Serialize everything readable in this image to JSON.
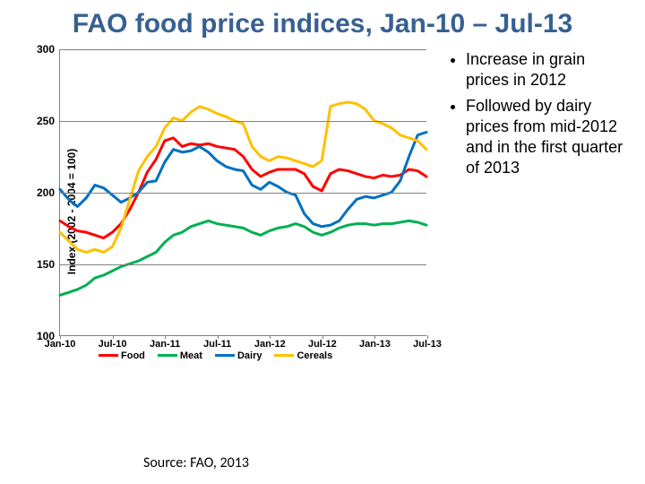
{
  "title": "FAO food price indices, Jan-10 – Jul-13",
  "ylabel": "Index (2002 - 2004 = 100)",
  "source": "Source: FAO, 2013",
  "bullets": [
    "Increase in grain prices in 2012",
    "Followed by dairy prices from mid-2012 and in the first quarter of 2013"
  ],
  "chart": {
    "type": "line",
    "ylim": [
      100,
      300
    ],
    "ytick_step": 50,
    "yticks": [
      100,
      150,
      200,
      250,
      300
    ],
    "xlabels": [
      "Jan-10",
      "Jul-10",
      "Jan-11",
      "Jul-11",
      "Jan-12",
      "Jul-12",
      "Jan-13",
      "Jul-13"
    ],
    "n_points": 43,
    "grid_color": "#808080",
    "background_color": "#ffffff",
    "line_width": 3,
    "axis_fontsize": 12,
    "title_fontsize": 30,
    "title_color": "#376092",
    "series": [
      {
        "name": "Food",
        "color": "#ff0000",
        "values": [
          180,
          176,
          173,
          172,
          170,
          168,
          172,
          178,
          188,
          200,
          214,
          223,
          236,
          238,
          232,
          234,
          233,
          234,
          232,
          231,
          230,
          225,
          216,
          211,
          214,
          216,
          216,
          216,
          213,
          204,
          201,
          213,
          216,
          215,
          213,
          211,
          210,
          212,
          211,
          212,
          216,
          215,
          211
        ]
      },
      {
        "name": "Meat",
        "color": "#00b050",
        "values": [
          128,
          130,
          132,
          135,
          140,
          142,
          145,
          148,
          150,
          152,
          155,
          158,
          165,
          170,
          172,
          176,
          178,
          180,
          178,
          177,
          176,
          175,
          172,
          170,
          173,
          175,
          176,
          178,
          176,
          172,
          170,
          172,
          175,
          177,
          178,
          178,
          177,
          178,
          178,
          179,
          180,
          179,
          177
        ]
      },
      {
        "name": "Dairy",
        "color": "#0070c0",
        "values": [
          202,
          195,
          190,
          196,
          205,
          203,
          198,
          193,
          196,
          200,
          207,
          208,
          221,
          230,
          228,
          229,
          232,
          228,
          222,
          218,
          216,
          215,
          205,
          202,
          207,
          204,
          200,
          198,
          185,
          178,
          176,
          177,
          180,
          188,
          195,
          197,
          196,
          198,
          200,
          208,
          225,
          240,
          242
        ]
      },
      {
        "name": "Cereals",
        "color": "#ffc000",
        "values": [
          172,
          166,
          160,
          158,
          160,
          158,
          162,
          175,
          195,
          215,
          225,
          232,
          245,
          252,
          250,
          256,
          260,
          258,
          255,
          253,
          250,
          248,
          232,
          225,
          222,
          225,
          224,
          222,
          220,
          218,
          222,
          260,
          262,
          263,
          262,
          258,
          250,
          248,
          245,
          240,
          238,
          236,
          230
        ]
      }
    ],
    "legend": {
      "items": [
        "Food",
        "Meat",
        "Dairy",
        "Cereals"
      ]
    }
  }
}
